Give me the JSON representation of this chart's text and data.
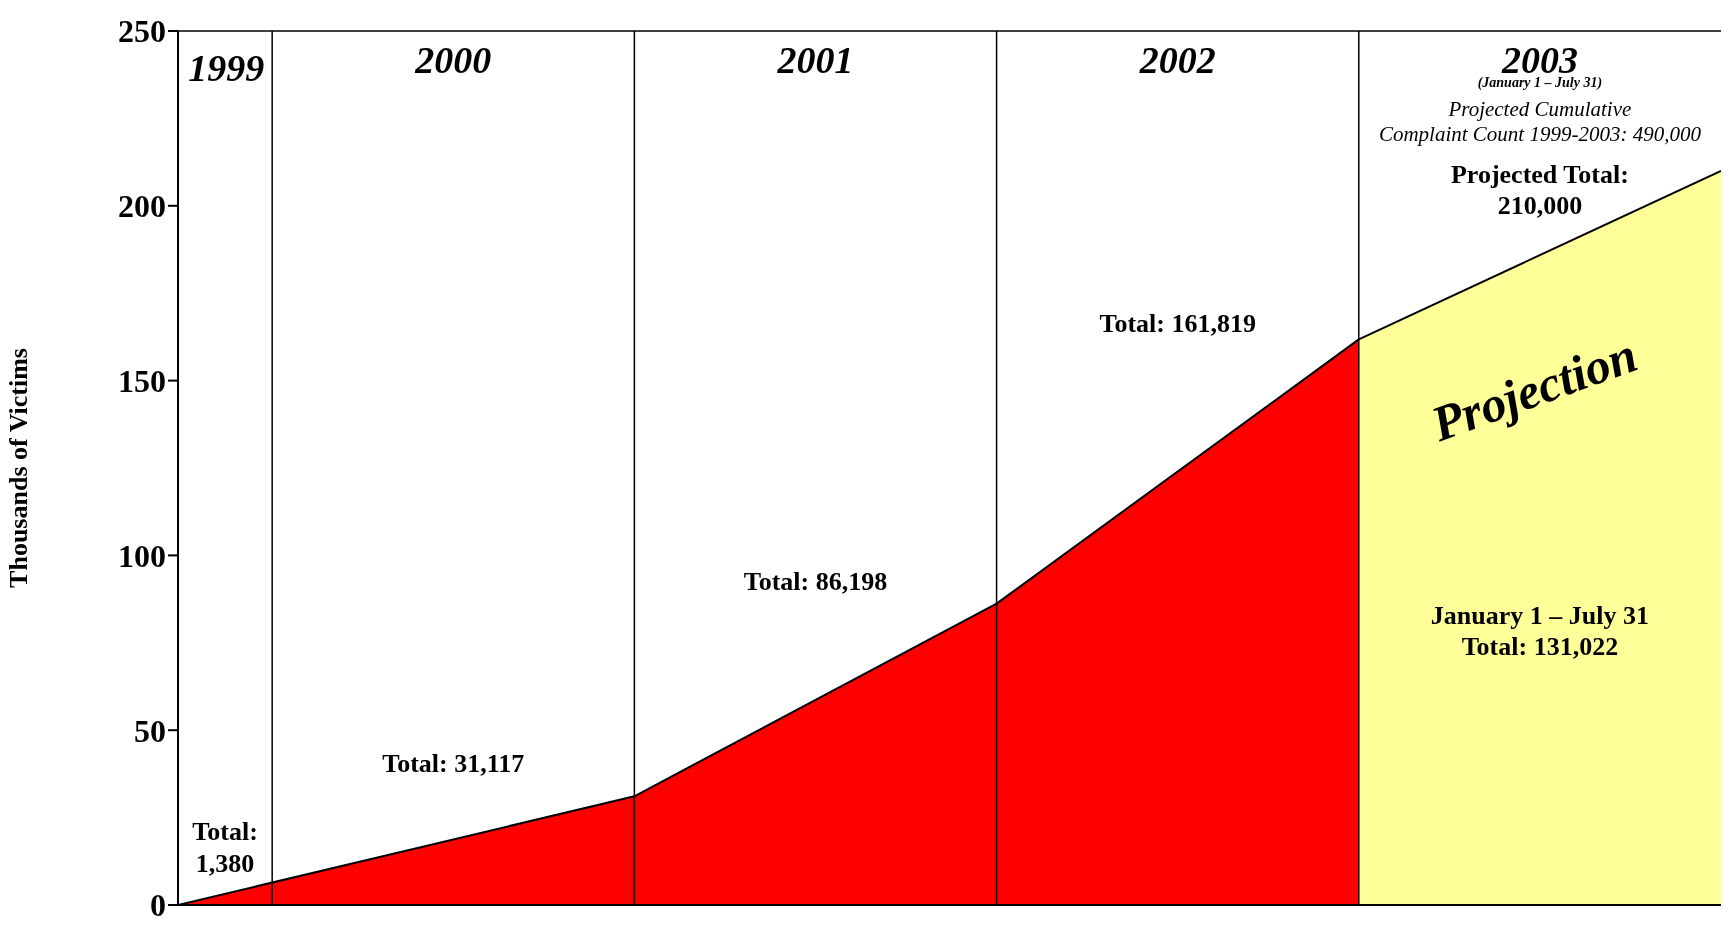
{
  "chart_data": {
    "type": "area",
    "ylabel": "Thousands of Victims",
    "xlim": [
      1999.24,
      2003.5
    ],
    "xticks": [
      2000,
      2001,
      2002,
      2003
    ],
    "ylim": [
      0,
      250
    ],
    "yticks": [
      0,
      50,
      100,
      150,
      200,
      250
    ],
    "series": [
      {
        "color": "#ff0000",
        "x": [
          1999.24,
          2000.5,
          2001.5,
          2002.5
        ],
        "values": [
          0,
          31.1,
          86.2,
          161.8
        ]
      },
      {
        "color": "#ffff99",
        "x": [
          2002.5,
          2003.5
        ],
        "values": [
          161.8,
          210
        ]
      }
    ],
    "ref_lines": [
      {
        "axis": "x",
        "value": 1999.5,
        "label": "1999"
      },
      {
        "axis": "x",
        "value": 2000.5
      },
      {
        "axis": "x",
        "value": 2001.5
      },
      {
        "axis": "x",
        "value": 2002.5
      }
    ],
    "annotations": [
      "Total:\n1,380",
      "Total:   31,117",
      "Total:   86,198",
      "Total:   161,819",
      "(January 1 – July 31)",
      "Projected Cumulative\nComplaint Count 1999-2003: 490,000",
      "Projected Total:\n210,000",
      "Projection",
      "January 1 – July 31\nTotal: 131,022"
    ]
  }
}
